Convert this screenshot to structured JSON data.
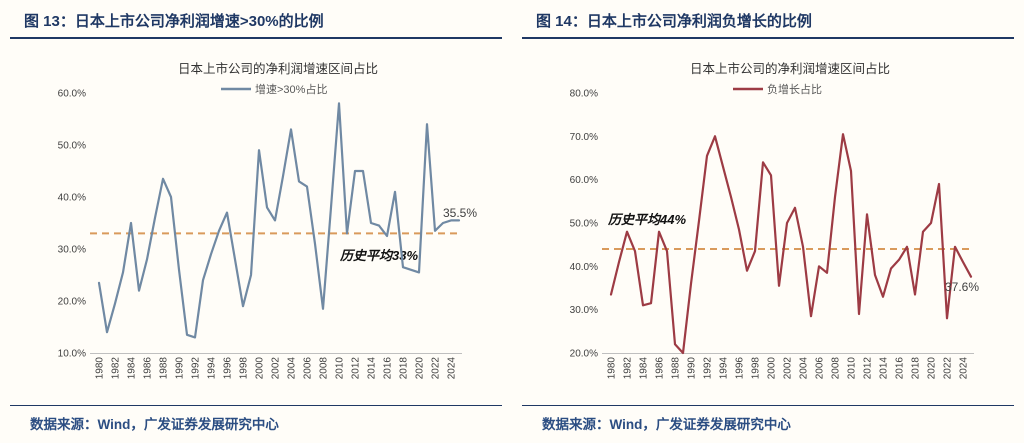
{
  "source": {
    "text": "数据来源：Wind，广发证券发展研究中心"
  },
  "figures": [
    {
      "header": "图 13：日本上市公司净利润增速>30%的比例"
    },
    {
      "header": "图 14：日本上市公司净利润负增长的比例"
    }
  ],
  "chart_data": [
    {
      "type": "line",
      "title": "日本上市公司的净利润增速区间占比",
      "xlabel": "",
      "ylabel": "",
      "grid": false,
      "legend_position": "top",
      "ylim": [
        10,
        60
      ],
      "yticks": [
        10,
        20,
        30,
        40,
        50,
        60
      ],
      "ytick_suffix": "%",
      "x": [
        1980,
        1981,
        1982,
        1983,
        1984,
        1985,
        1986,
        1987,
        1988,
        1989,
        1990,
        1991,
        1992,
        1993,
        1994,
        1995,
        1996,
        1997,
        1998,
        1999,
        2000,
        2001,
        2002,
        2003,
        2004,
        2005,
        2006,
        2007,
        2008,
        2009,
        2010,
        2011,
        2012,
        2013,
        2014,
        2015,
        2016,
        2017,
        2018,
        2019,
        2020,
        2021,
        2022,
        2023,
        2024,
        2025
      ],
      "series": [
        {
          "name": "增速>30%占比",
          "color": "#7089a3",
          "values": [
            23.5,
            14,
            19.5,
            25.5,
            35,
            22,
            28,
            36,
            43.5,
            40,
            26,
            13.5,
            13,
            24,
            29,
            33.5,
            37,
            28,
            19,
            25,
            49,
            38,
            35.5,
            44,
            53,
            43,
            42,
            31,
            18.5,
            38,
            58,
            33,
            45,
            45,
            35,
            34.5,
            32.5,
            41,
            26.5,
            26,
            25.5,
            54,
            33.5,
            35,
            35.5,
            35.5
          ]
        }
      ],
      "average_line": {
        "value": 33,
        "label": "历史平均33%",
        "color": "#d99a5b",
        "label_pos": {
          "x": 330,
          "y": 219
        }
      },
      "end_label": {
        "text": "35.5%",
        "x": 433,
        "y": 176
      }
    },
    {
      "type": "line",
      "title": "日本上市公司的净利润增速区间占比",
      "xlabel": "",
      "ylabel": "",
      "grid": false,
      "legend_position": "top",
      "ylim": [
        20,
        80
      ],
      "yticks": [
        20,
        30,
        40,
        50,
        60,
        70,
        80
      ],
      "ytick_suffix": "%",
      "x": [
        1980,
        1981,
        1982,
        1983,
        1984,
        1985,
        1986,
        1987,
        1988,
        1989,
        1990,
        1991,
        1992,
        1993,
        1994,
        1995,
        1996,
        1997,
        1998,
        1999,
        2000,
        2001,
        2002,
        2003,
        2004,
        2005,
        2006,
        2007,
        2008,
        2009,
        2010,
        2011,
        2012,
        2013,
        2014,
        2015,
        2016,
        2017,
        2018,
        2019,
        2020,
        2021,
        2022,
        2023,
        2024,
        2025
      ],
      "series": [
        {
          "name": "负增长占比",
          "color": "#9d3b44",
          "values": [
            33.5,
            41,
            48,
            43.5,
            31,
            31.5,
            48,
            43.5,
            22,
            20,
            36,
            50.5,
            65.5,
            70,
            63,
            56,
            48.5,
            39,
            43.5,
            64,
            61,
            35.5,
            50,
            53.5,
            44.5,
            28.5,
            40,
            38.5,
            56,
            70.5,
            62,
            29,
            52,
            38,
            33,
            39.5,
            41.5,
            44.5,
            33.5,
            48,
            50,
            59,
            28,
            44.5,
            41,
            37.6
          ]
        }
      ],
      "average_line": {
        "value": 44,
        "label": "历史平均44%",
        "color": "#d99a5b",
        "label_pos": {
          "x": 86,
          "y": 183
        }
      },
      "end_label": {
        "text": "37.6%",
        "x": 423,
        "y": 250
      }
    }
  ]
}
